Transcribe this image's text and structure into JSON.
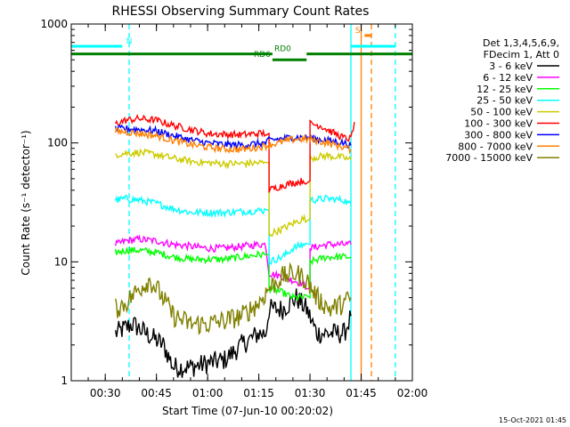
{
  "chart_data": {
    "type": "line",
    "title": "RHESSI Observing Summary Count Rates",
    "xlabel": "Start Time (07-Jun-10 00:20:02)",
    "ylabel": "Count Rate (s⁻¹ detector⁻¹)",
    "y_scale": "log",
    "ylim": [
      1,
      1000
    ],
    "xlim": [
      "00:20:02",
      "02:00"
    ],
    "x_ticks": [
      "00:30",
      "00:45",
      "01:00",
      "01:15",
      "01:30",
      "01:45",
      "02:00"
    ],
    "y_ticks": [
      "1",
      "10",
      "100",
      "1000"
    ],
    "legend_position": "right",
    "legend_header": [
      "Det 1,3,4,5,6,9,",
      "FDecim 1, Att 0"
    ],
    "series": [
      {
        "name": "3 - 6 keV",
        "color": "#000000",
        "points": [
          [
            "00:33",
            2.5
          ],
          [
            "00:38",
            3
          ],
          [
            "00:42",
            2.5
          ],
          [
            "00:47",
            2
          ],
          [
            "00:50",
            1.3
          ],
          [
            "00:55",
            1.3
          ],
          [
            "01:00",
            1.4
          ],
          [
            "01:05",
            1.5
          ],
          [
            "01:10",
            2
          ],
          [
            "01:15",
            2.5
          ],
          [
            "01:17",
            2.5
          ],
          [
            "01:18",
            4
          ],
          [
            "01:22",
            4
          ],
          [
            "01:26",
            5
          ],
          [
            "01:29",
            4
          ],
          [
            "01:32",
            2.5
          ],
          [
            "01:36",
            2.5
          ],
          [
            "01:40",
            2.5
          ],
          [
            "01:42",
            3.5
          ]
        ]
      },
      {
        "name": "6 - 12 keV",
        "color": "#ff00ff",
        "points": [
          [
            "00:33",
            14
          ],
          [
            "00:36",
            15
          ],
          [
            "00:40",
            15.5
          ],
          [
            "00:45",
            15
          ],
          [
            "00:50",
            14
          ],
          [
            "00:55",
            13.5
          ],
          [
            "01:00",
            13
          ],
          [
            "01:05",
            13
          ],
          [
            "01:10",
            13.5
          ],
          [
            "01:15",
            14
          ],
          [
            "01:17",
            14
          ],
          [
            "01:18",
            8
          ],
          [
            "01:22",
            7.5
          ],
          [
            "01:25",
            7
          ],
          [
            "01:28",
            6.5
          ],
          [
            "01:29",
            6
          ],
          [
            "01:30",
            13
          ],
          [
            "01:35",
            14
          ],
          [
            "01:40",
            14
          ],
          [
            "01:42",
            14
          ]
        ]
      },
      {
        "name": "12 - 25 keV",
        "color": "#00ff00",
        "points": [
          [
            "00:33",
            12
          ],
          [
            "00:36",
            12.5
          ],
          [
            "00:40",
            12.5
          ],
          [
            "00:45",
            12
          ],
          [
            "00:50",
            11
          ],
          [
            "00:55",
            10.5
          ],
          [
            "01:00",
            10.5
          ],
          [
            "01:05",
            10.5
          ],
          [
            "01:10",
            11
          ],
          [
            "01:15",
            11.5
          ],
          [
            "01:17",
            11.5
          ],
          [
            "01:18",
            6
          ],
          [
            "01:22",
            5.5
          ],
          [
            "01:25",
            5
          ],
          [
            "01:28",
            5
          ],
          [
            "01:29",
            5
          ],
          [
            "01:30",
            10
          ],
          [
            "01:35",
            11
          ],
          [
            "01:40",
            11
          ],
          [
            "01:42",
            11
          ]
        ]
      },
      {
        "name": "25 - 50 keV",
        "color": "#00ffff",
        "points": [
          [
            "00:33",
            33
          ],
          [
            "00:36",
            34
          ],
          [
            "00:40",
            33
          ],
          [
            "00:45",
            31
          ],
          [
            "00:50",
            28
          ],
          [
            "00:55",
            26
          ],
          [
            "01:00",
            26
          ],
          [
            "01:05",
            26
          ],
          [
            "01:10",
            26.5
          ],
          [
            "01:15",
            27
          ],
          [
            "01:17",
            27
          ],
          [
            "01:18",
            10
          ],
          [
            "01:22",
            11
          ],
          [
            "01:25",
            13
          ],
          [
            "01:28",
            14
          ],
          [
            "01:29",
            14
          ],
          [
            "01:30",
            33
          ],
          [
            "01:35",
            34
          ],
          [
            "01:40",
            33
          ],
          [
            "01:42",
            30
          ]
        ]
      },
      {
        "name": "50 - 100 keV",
        "color": "#cccc00",
        "points": [
          [
            "00:33",
            80
          ],
          [
            "00:36",
            82
          ],
          [
            "00:40",
            83
          ],
          [
            "00:45",
            80
          ],
          [
            "00:50",
            74
          ],
          [
            "00:55",
            70
          ],
          [
            "01:00",
            68
          ],
          [
            "01:05",
            67
          ],
          [
            "01:10",
            67
          ],
          [
            "01:15",
            68
          ],
          [
            "01:17",
            68
          ],
          [
            "01:18",
            17
          ],
          [
            "01:22",
            19
          ],
          [
            "01:25",
            21
          ],
          [
            "01:28",
            23
          ],
          [
            "01:29",
            23
          ],
          [
            "01:30",
            75
          ],
          [
            "01:35",
            78
          ],
          [
            "01:40",
            75
          ],
          [
            "01:42",
            72
          ]
        ]
      },
      {
        "name": "100 - 300 keV",
        "color": "#ff0000",
        "points": [
          [
            "00:33",
            145
          ],
          [
            "00:36",
            155
          ],
          [
            "00:40",
            160
          ],
          [
            "00:45",
            155
          ],
          [
            "00:50",
            140
          ],
          [
            "00:55",
            130
          ],
          [
            "01:00",
            120
          ],
          [
            "01:05",
            118
          ],
          [
            "01:10",
            117
          ],
          [
            "01:15",
            120
          ],
          [
            "01:17",
            120
          ],
          [
            "01:18",
            40
          ],
          [
            "01:22",
            44
          ],
          [
            "01:25",
            46
          ],
          [
            "01:28",
            48
          ],
          [
            "01:29",
            48
          ],
          [
            "01:30",
            145
          ],
          [
            "01:33",
            140
          ],
          [
            "01:36",
            125
          ],
          [
            "01:40",
            110
          ],
          [
            "01:42",
            108
          ],
          [
            "01:43",
            150
          ]
        ]
      },
      {
        "name": "300 - 800 keV",
        "color": "#0000ff",
        "points": [
          [
            "00:33",
            130
          ],
          [
            "00:36",
            132
          ],
          [
            "00:40",
            130
          ],
          [
            "00:45",
            126
          ],
          [
            "00:50",
            115
          ],
          [
            "00:55",
            106
          ],
          [
            "01:00",
            100
          ],
          [
            "01:05",
            97
          ],
          [
            "01:10",
            96
          ],
          [
            "01:15",
            99
          ],
          [
            "01:17",
            100
          ],
          [
            "01:18",
            105
          ],
          [
            "01:22",
            109
          ],
          [
            "01:26",
            112
          ],
          [
            "01:30",
            110
          ],
          [
            "01:35",
            105
          ],
          [
            "01:40",
            100
          ],
          [
            "01:42",
            95
          ]
        ]
      },
      {
        "name": "800 - 7000 keV",
        "color": "#ff8000",
        "points": [
          [
            "00:33",
            125
          ],
          [
            "00:36",
            124
          ],
          [
            "00:40",
            120
          ],
          [
            "00:45",
            115
          ],
          [
            "00:50",
            105
          ],
          [
            "00:55",
            97
          ],
          [
            "01:00",
            92
          ],
          [
            "01:05",
            89
          ],
          [
            "01:10",
            88
          ],
          [
            "01:15",
            92
          ],
          [
            "01:18",
            96
          ],
          [
            "01:22",
            102
          ],
          [
            "01:26",
            108
          ],
          [
            "01:30",
            107
          ],
          [
            "01:35",
            100
          ],
          [
            "01:40",
            92
          ],
          [
            "01:42",
            88
          ]
        ]
      },
      {
        "name": "7000 - 15000 keV",
        "color": "#808000",
        "points": [
          [
            "00:33",
            4
          ],
          [
            "00:36",
            4.5
          ],
          [
            "00:40",
            6
          ],
          [
            "00:43",
            7
          ],
          [
            "00:46",
            5.5
          ],
          [
            "00:50",
            3.5
          ],
          [
            "00:55",
            3
          ],
          [
            "01:00",
            3
          ],
          [
            "01:05",
            3.2
          ],
          [
            "01:10",
            3.5
          ],
          [
            "01:15",
            4.5
          ],
          [
            "01:18",
            6
          ],
          [
            "01:22",
            7.5
          ],
          [
            "01:26",
            8
          ],
          [
            "01:29",
            7
          ],
          [
            "01:32",
            5
          ],
          [
            "01:36",
            4
          ],
          [
            "01:40",
            4.5
          ],
          [
            "01:42",
            5
          ]
        ]
      }
    ],
    "annotations": [
      {
        "label": "N",
        "color": "#00ffff",
        "time": "00:37",
        "level": 650
      },
      {
        "label": "RD0",
        "color": "#008000",
        "time": "01:22",
        "level": 560
      },
      {
        "label": "RD6",
        "color": "#008000",
        "time": "01:16",
        "level": 500
      },
      {
        "label": "S",
        "color": "#ff8000",
        "time": "01:44",
        "level": 800
      }
    ],
    "status_bars": [
      {
        "name": "night",
        "color": "#00ffff",
        "level": 650,
        "segments": [
          [
            "00:20:02",
            "00:35"
          ],
          [
            "01:42",
            "01:55"
          ]
        ]
      },
      {
        "name": "decimation",
        "color": "#008000",
        "level": 560,
        "segments": [
          [
            "00:20:02",
            "01:19"
          ],
          [
            "01:29",
            "02:00"
          ]
        ]
      },
      {
        "name": "decimation-rd6",
        "color": "#008000",
        "level": 500,
        "segments": [
          [
            "01:19",
            "01:29"
          ]
        ]
      },
      {
        "name": "saa",
        "color": "#ff8000",
        "level": 800,
        "segments": [
          [
            "01:46",
            "01:48"
          ]
        ]
      }
    ],
    "vertical_markers": [
      {
        "time": "00:37",
        "color": "#00ffff",
        "style": "dashed"
      },
      {
        "time": "01:42",
        "color": "#00ffff",
        "style": "solid"
      },
      {
        "time": "01:45",
        "color": "#ff8000",
        "style": "solid"
      },
      {
        "time": "01:48",
        "color": "#ff8000",
        "style": "dashed"
      },
      {
        "time": "01:55",
        "color": "#00ffff",
        "style": "dashed"
      }
    ],
    "footer_timestamp": "15-Oct-2021 01:45"
  }
}
